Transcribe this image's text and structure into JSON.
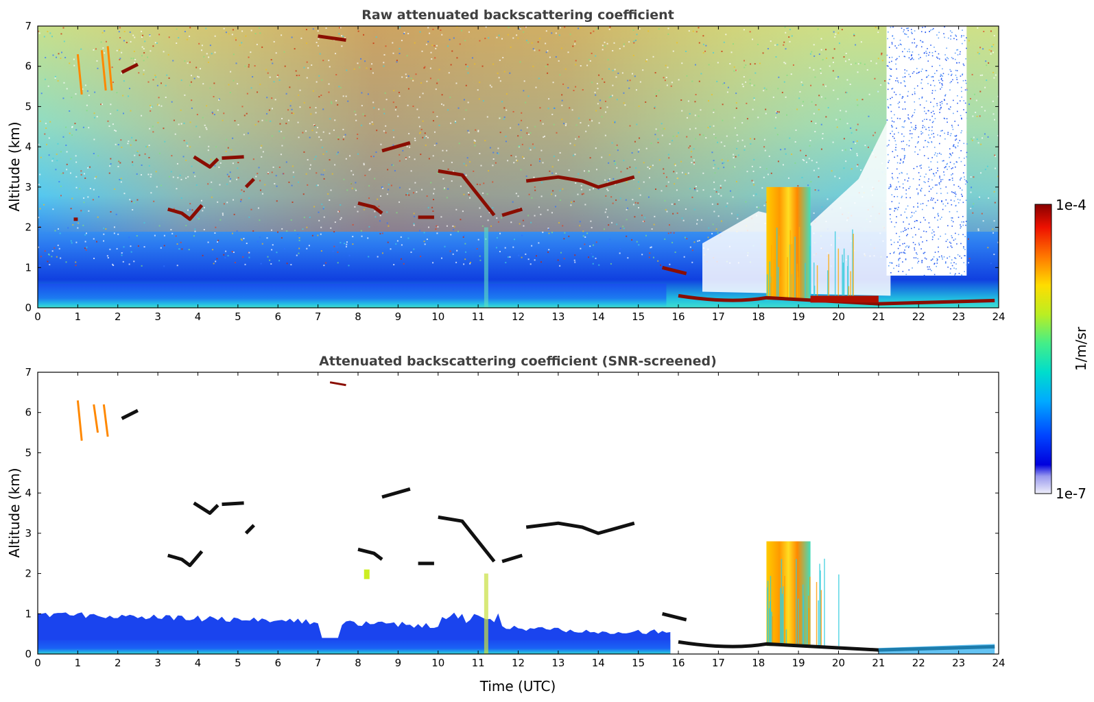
{
  "chart_data": [
    {
      "type": "heatmap",
      "title": "Raw attenuated backscattering coefficient",
      "xlabel": "",
      "ylabel": "Altitude (km)",
      "xlim": [
        0,
        24
      ],
      "ylim": [
        0,
        7
      ],
      "x_ticks": [
        "0",
        "1",
        "2",
        "3",
        "4",
        "5",
        "6",
        "7",
        "8",
        "9",
        "10",
        "11",
        "12",
        "13",
        "14",
        "15",
        "16",
        "17",
        "18",
        "19",
        "20",
        "21",
        "22",
        "23",
        "24"
      ],
      "y_ticks": [
        "0",
        "1",
        "2",
        "3",
        "4",
        "5",
        "6",
        "7"
      ],
      "features": [
        {
          "kind": "boundary-layer",
          "x": [
            0,
            15.7
          ],
          "y": [
            0,
            0.6
          ]
        },
        {
          "kind": "cloud",
          "x": [
            3.3,
            5.2
          ],
          "y": [
            2.2,
            3.8
          ]
        },
        {
          "kind": "cloud",
          "x": [
            8.0,
            12.2
          ],
          "y": [
            2.2,
            3.6
          ]
        },
        {
          "kind": "cloud",
          "x": [
            12.2,
            14.9
          ],
          "y": [
            3.0,
            3.3
          ]
        },
        {
          "kind": "cloud",
          "x": [
            18.2,
            19.3
          ],
          "y": [
            0.2,
            3.0
          ]
        },
        {
          "kind": "low-layer",
          "x": [
            16.0,
            24.0
          ],
          "y": [
            0.05,
            0.4
          ]
        },
        {
          "kind": "clear-gap",
          "x": [
            21.2,
            23.2
          ],
          "y": [
            0.8,
            7.0
          ]
        }
      ]
    },
    {
      "type": "heatmap",
      "title": "Attenuated backscattering coefficient (SNR-screened)",
      "xlabel": "Time (UTC)",
      "ylabel": "Altitude (km)",
      "xlim": [
        0,
        24
      ],
      "ylim": [
        0,
        7
      ],
      "x_ticks": [
        "0",
        "1",
        "2",
        "3",
        "4",
        "5",
        "6",
        "7",
        "8",
        "9",
        "10",
        "11",
        "12",
        "13",
        "14",
        "15",
        "16",
        "17",
        "18",
        "19",
        "20",
        "21",
        "22",
        "23",
        "24"
      ],
      "y_ticks": [
        "0",
        "1",
        "2",
        "3",
        "4",
        "5",
        "6",
        "7"
      ],
      "features": [
        {
          "kind": "boundary-layer",
          "x": [
            0,
            15.7
          ],
          "y": [
            0,
            1.0
          ]
        },
        {
          "kind": "cloud",
          "x": [
            3.3,
            5.2
          ],
          "y": [
            2.2,
            3.8
          ]
        },
        {
          "kind": "cloud",
          "x": [
            8.0,
            12.2
          ],
          "y": [
            2.2,
            3.6
          ]
        },
        {
          "kind": "cloud",
          "x": [
            12.2,
            14.9
          ],
          "y": [
            3.0,
            3.3
          ]
        },
        {
          "kind": "cloud",
          "x": [
            18.2,
            19.3
          ],
          "y": [
            0.2,
            3.0
          ]
        },
        {
          "kind": "low-layer",
          "x": [
            16.0,
            24.0
          ],
          "y": [
            0.05,
            0.3
          ]
        }
      ]
    }
  ],
  "colorbar": {
    "min_label": "1e-7",
    "max_label": "1e-4",
    "label": "1/m/sr",
    "scale": "log",
    "colormap": [
      "#e8e8f8",
      "#0000cc",
      "#0033ff",
      "#00aaff",
      "#00ddcc",
      "#66ee66",
      "#dddd00",
      "#ffaa00",
      "#ff3300",
      "#880000"
    ]
  }
}
